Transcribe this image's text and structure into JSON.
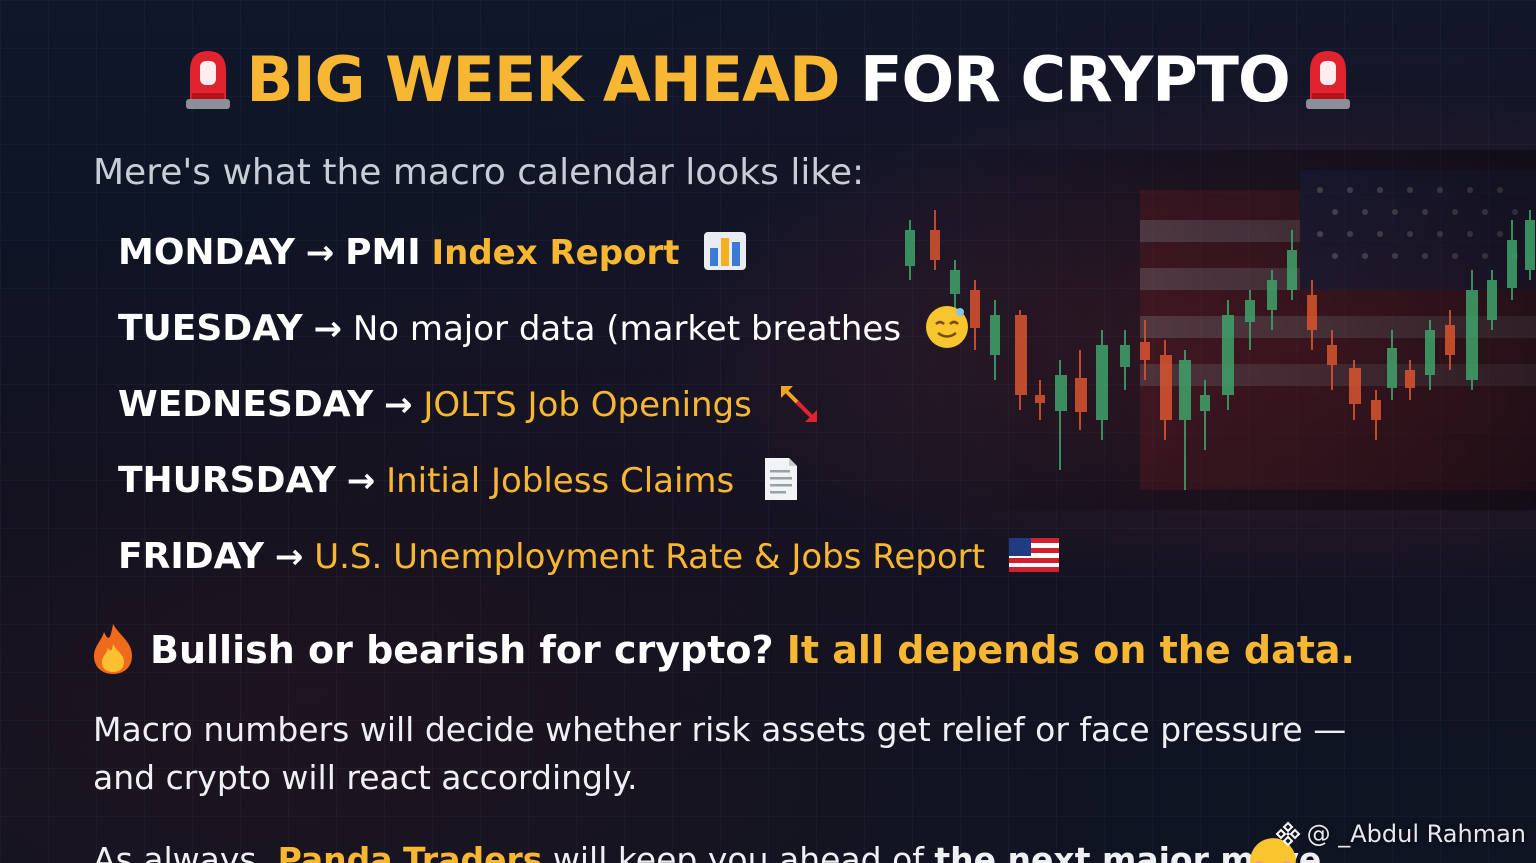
{
  "title": {
    "part1": "BIG WEEK AHEAD",
    "part2": "FOR CRYPTO",
    "left_icon": "siren-icon",
    "right_icon": "siren-icon"
  },
  "intro": "Mere's what the macro calendar looks like:",
  "schedule": [
    {
      "day": "MONDAY",
      "arrow": "→",
      "plain": "PMI",
      "highlight": "Index Report",
      "icon": "bar-chart-icon"
    },
    {
      "day": "TUESDAY",
      "arrow": "→",
      "plain": "No major data (market breathes",
      "highlight": "",
      "icon": "relieved-face-icon"
    },
    {
      "day": "WEDNESDAY",
      "arrow": "→",
      "plain": "",
      "highlight": "JOLTS Job Openings",
      "icon": "diagonal-arrows-icon"
    },
    {
      "day": "THURSDAY",
      "arrow": "→",
      "plain": "",
      "highlight": "Initial Jobless Claims",
      "icon": "document-icon"
    },
    {
      "day": "FRIDAY",
      "arrow": "→",
      "plain": "",
      "highlight": "U.S. Unemployment Rate & Jobs Report",
      "icon": "us-flag-icon"
    }
  ],
  "callout": {
    "icon": "fire-icon",
    "question": "Bullish or bearish for crypto?",
    "answer": "It all depends on the data."
  },
  "paragraph": "Macro numbers will decide whether risk assets get relief or face pressure — and crypto will react accordingly.",
  "closing": {
    "prefix": "As always,",
    "brand1": "Panda",
    "brand2": "Traders",
    "suffix": "will keep you ahead of",
    "bold_tail": "the next major move",
    "icon": "smiling-face-icon"
  },
  "watermark": {
    "icon": "binance-logo-icon",
    "handle": "@ _Abdul Rahman"
  },
  "colors": {
    "accent": "#f7b733",
    "text": "#ffffff",
    "background": "#0d1322"
  }
}
